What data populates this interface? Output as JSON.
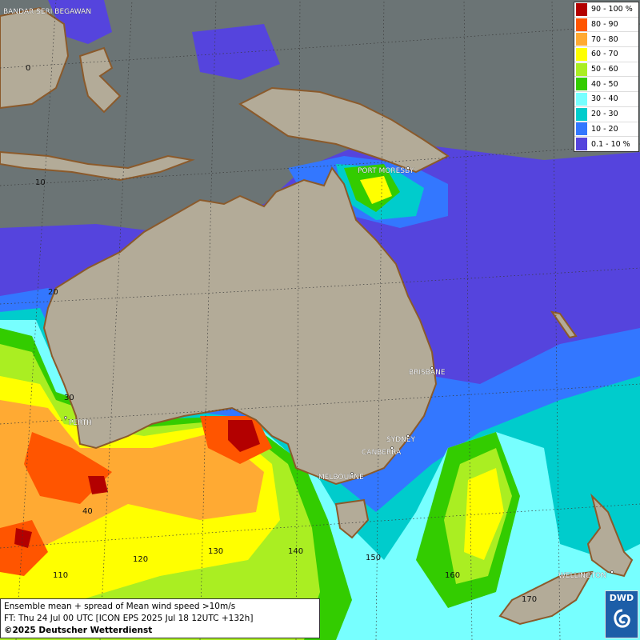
{
  "map": {
    "cities": [
      {
        "name": "BANDAR SERI BEGAWAN",
        "key": "bandar-seri-begawan"
      },
      {
        "name": "PORT MORESBY",
        "key": "port-moresby"
      },
      {
        "name": "BRISBANE",
        "key": "brisbane"
      },
      {
        "name": "PERTH",
        "key": "perth"
      },
      {
        "name": "SYDNEY",
        "key": "sydney"
      },
      {
        "name": "CANBERRA",
        "key": "canberra"
      },
      {
        "name": "MELBOURNE",
        "key": "melbourne"
      },
      {
        "name": "WELLINGTON",
        "key": "wellington"
      }
    ],
    "latitude_labels": [
      "0",
      "10",
      "20",
      "30",
      "40"
    ],
    "longitude_labels": [
      "110",
      "120",
      "130",
      "140",
      "150",
      "160",
      "170"
    ]
  },
  "legend": {
    "items": [
      {
        "label": "90 - 100 %",
        "color": "#b30000"
      },
      {
        "label": "80 - 90",
        "color": "#ff5500"
      },
      {
        "label": "70 - 80",
        "color": "#ffaa33"
      },
      {
        "label": "60 - 70",
        "color": "#ffff00"
      },
      {
        "label": "50 - 60",
        "color": "#aaee22"
      },
      {
        "label": "40 - 50",
        "color": "#33cc00"
      },
      {
        "label": "30 - 40",
        "color": "#77ffff"
      },
      {
        "label": "20 - 30",
        "color": "#00cccc"
      },
      {
        "label": "10 - 20",
        "color": "#3377ff"
      },
      {
        "label": "0.1 - 10 %",
        "color": "#5544dd"
      }
    ]
  },
  "info": {
    "line1": "Ensemble mean + spread of Mean wind speed >10m/s",
    "line2": "FT: Thu 24 Jul 00 UTC [ICON EPS 2025 Jul 18 12UTC +132h]",
    "line3": "©2025 Deutscher Wetterdienst"
  },
  "logo": {
    "text": "DWD"
  },
  "colors": {
    "ocean": "#6b7475",
    "land": "#b3ab98",
    "coast": "#8b5a2b"
  }
}
